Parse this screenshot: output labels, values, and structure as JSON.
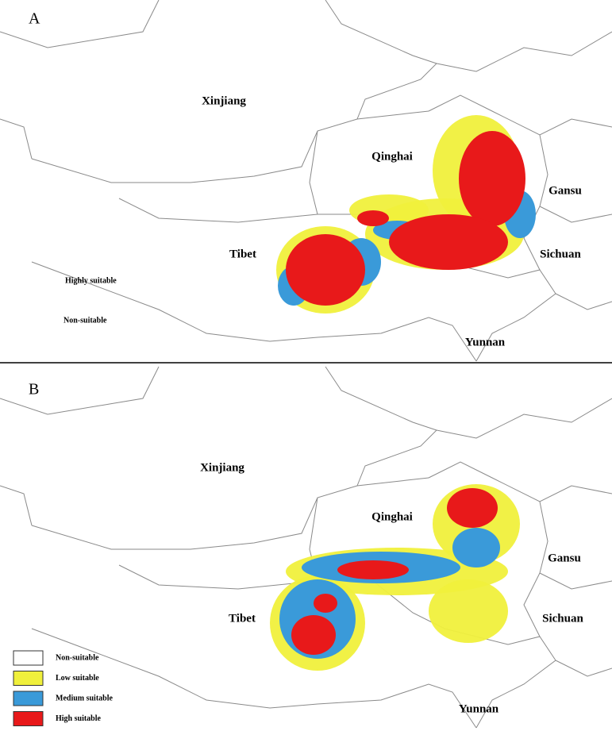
{
  "panels": [
    {
      "label": "A",
      "regions": [
        "Xinjiang",
        "Qinghai",
        "Gansu",
        "Tibet",
        "Sichuan",
        "Yunnan"
      ],
      "notes": [
        "Highly suitable",
        "Non-suitable"
      ]
    },
    {
      "label": "B",
      "regions": [
        "Xinjiang",
        "Qinghai",
        "Gansu",
        "Tibet",
        "Sichuan",
        "Yunnan"
      ]
    }
  ],
  "legend": [
    {
      "label": "Non-suitable",
      "color": "#ffffff"
    },
    {
      "label": "Low suitable",
      "color": "#f0f03c"
    },
    {
      "label": "Medium suitable",
      "color": "#3a9ad9"
    },
    {
      "label": "High suitable",
      "color": "#e8191a"
    }
  ]
}
